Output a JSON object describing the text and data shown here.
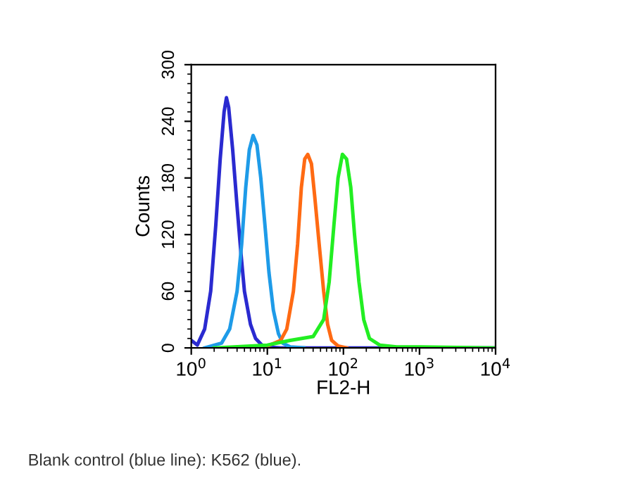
{
  "chart_data": {
    "type": "line",
    "xlabel": "FL2-H",
    "ylabel": "Counts",
    "log": "x",
    "grid": false,
    "legend": false,
    "xlim": [
      1,
      10000
    ],
    "xticks": [
      {
        "value": 1,
        "label": "10$^{0}$"
      },
      {
        "value": 10,
        "label": "10$^{1}$"
      },
      {
        "value": 100,
        "label": "10$^{2}$"
      },
      {
        "value": 1000,
        "label": "10$^{3}$"
      },
      {
        "value": 10000,
        "label": "10$^{4}$"
      }
    ],
    "ylim": [
      0,
      300
    ],
    "yticks": [
      0,
      60,
      120,
      180,
      240,
      300
    ],
    "series": [
      {
        "color": "#2a2ad0",
        "x": [
          1.0,
          1.2,
          1.5,
          1.8,
          2.1,
          2.4,
          2.7,
          2.9,
          3.1,
          3.5,
          4.0,
          4.5,
          5.0,
          6.0,
          7.0,
          8.5,
          10,
          15,
          100,
          10000
        ],
        "values": [
          8,
          3,
          20,
          60,
          130,
          200,
          250,
          265,
          255,
          210,
          150,
          100,
          60,
          25,
          10,
          3,
          1,
          0,
          0,
          0
        ]
      },
      {
        "color": "#1e9be8",
        "x": [
          1.5,
          2.5,
          3.2,
          4.0,
          4.6,
          5.2,
          5.8,
          6.5,
          7.3,
          8.2,
          9.3,
          10.5,
          12,
          14,
          16,
          20,
          30
        ],
        "values": [
          0,
          5,
          20,
          60,
          110,
          170,
          210,
          225,
          215,
          180,
          130,
          80,
          40,
          15,
          5,
          1,
          0
        ]
      },
      {
        "color": "#ff6a13",
        "x": [
          4,
          10,
          15,
          18,
          22,
          25,
          28,
          31,
          34,
          38,
          42,
          48,
          55,
          62,
          70,
          85,
          110
        ],
        "values": [
          0,
          2,
          8,
          20,
          60,
          110,
          170,
          200,
          205,
          195,
          160,
          110,
          60,
          25,
          8,
          2,
          0
        ]
      },
      {
        "color": "#22ee22",
        "x": [
          2,
          10,
          20,
          40,
          55,
          65,
          75,
          85,
          97,
          110,
          125,
          140,
          160,
          185,
          220,
          300,
          500,
          1000,
          10000
        ],
        "values": [
          0,
          3,
          8,
          12,
          30,
          70,
          130,
          180,
          205,
          200,
          170,
          120,
          70,
          30,
          10,
          3,
          1,
          1,
          0
        ]
      }
    ],
    "annotations": [
      "Blank control (blue line): K562 (blue)."
    ]
  }
}
